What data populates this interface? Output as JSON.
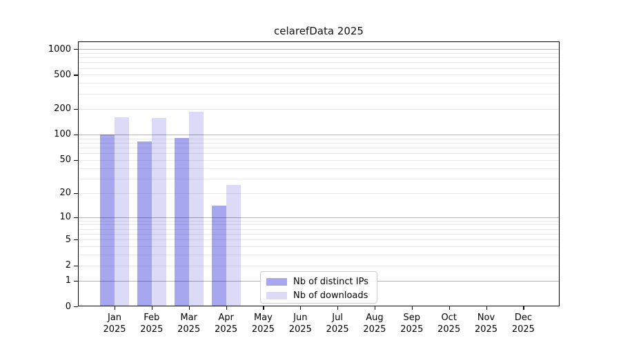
{
  "title": "celarefData 2025",
  "chart_data": {
    "type": "bar",
    "title": "celarefData 2025",
    "categories": [
      "Jan\n2025",
      "Feb\n2025",
      "Mar\n2025",
      "Apr\n2025",
      "May\n2025",
      "Jun\n2025",
      "Jul\n2025",
      "Aug\n2025",
      "Sep\n2025",
      "Oct\n2025",
      "Nov\n2025",
      "Dec\n2025"
    ],
    "series": [
      {
        "name": "Nb of distinct IPs",
        "color": "#a7a7f0",
        "values": [
          100,
          82,
          91,
          14,
          0,
          0,
          0,
          0,
          0,
          0,
          0,
          0
        ]
      },
      {
        "name": "Nb of downloads",
        "color": "#dbdbf8",
        "values": [
          160,
          155,
          183,
          25,
          0,
          0,
          0,
          0,
          0,
          0,
          0,
          0
        ]
      }
    ],
    "xlabel": "",
    "ylabel": "",
    "yscale": "log1p",
    "yticks": [
      0,
      1,
      2,
      5,
      10,
      20,
      50,
      100,
      200,
      500,
      1000
    ],
    "ylim": [
      0,
      1230
    ],
    "grid": "horizontal",
    "legend_position": "inside-bottom-center"
  },
  "colors": {
    "major_grid": "#b2b2b2",
    "minor_grid": "#e9e9e9",
    "spine": "#000000",
    "background": "#ffffff"
  }
}
